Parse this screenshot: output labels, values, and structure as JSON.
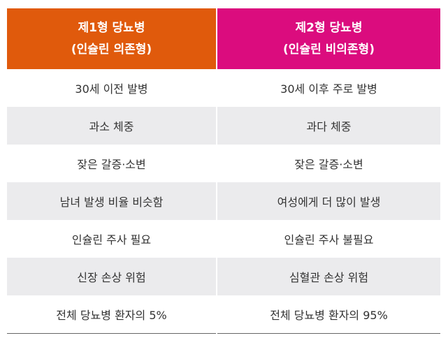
{
  "table": {
    "headers": [
      {
        "line1": "제1형 당뇨병",
        "line2": "(인슐린 의존형)",
        "color": "#e05a0c"
      },
      {
        "line1": "제2형 당뇨병",
        "line2": "(인슐린 비의존형)",
        "color": "#db0c7e"
      }
    ],
    "rows": [
      [
        "30세 이전 발병",
        "30세 이후 주로 발병"
      ],
      [
        "과소 체중",
        "과다 체중"
      ],
      [
        "잦은 갈증·소변",
        "잦은 갈증·소변"
      ],
      [
        "남녀 발생 비율 비슷함",
        "여성에게 더 많이 발생"
      ],
      [
        "인슐린 주사 필요",
        "인슐린 주사 불필요"
      ],
      [
        "신장 손상 위험",
        "심혈관 손상 위험"
      ],
      [
        "전체 당뇨병 환자의 5%",
        "전체 당뇨병 환자의 95%"
      ]
    ],
    "stripe_color": "#ebebed"
  }
}
